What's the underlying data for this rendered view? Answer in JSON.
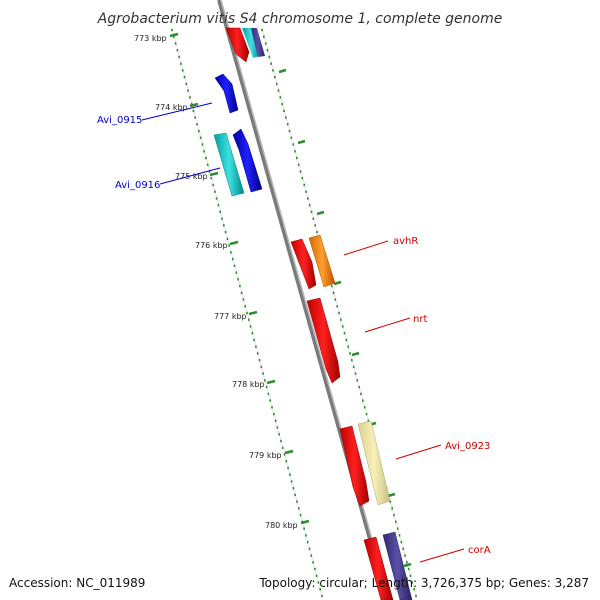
{
  "title": "Agrobacterium vitis S4 chromosome 1, complete genome",
  "footer": {
    "accession": "Accession: NC_011989",
    "summary": "Topology: circular; Length: 3,726,375 bp; Genes: 3,287"
  },
  "ticks": [
    "773 kbp",
    "774 kbp",
    "775 kbp",
    "776 kbp",
    "777 kbp",
    "778 kbp",
    "779 kbp",
    "780 kbp"
  ],
  "gene_labels": [
    {
      "text": "Avi_0915",
      "color": "#0000cc"
    },
    {
      "text": "Avi_0916",
      "color": "#0000cc"
    },
    {
      "text": "avhR",
      "color": "#cc0000"
    },
    {
      "text": "nrt",
      "color": "#cc0000"
    },
    {
      "text": "Avi_0923",
      "color": "#cc0000"
    },
    {
      "text": "corA",
      "color": "#cc0000"
    }
  ],
  "colors": {
    "backbone": "#888888",
    "tick_marks": "#2e8b2e",
    "cds": "#ff0000",
    "cds_reverse": "#0000ff",
    "cyan_feature": "#00cccc",
    "orange_feature": "#ff8c00",
    "yellow_feature": "#eee8aa",
    "purple_feature": "#483d8b"
  }
}
